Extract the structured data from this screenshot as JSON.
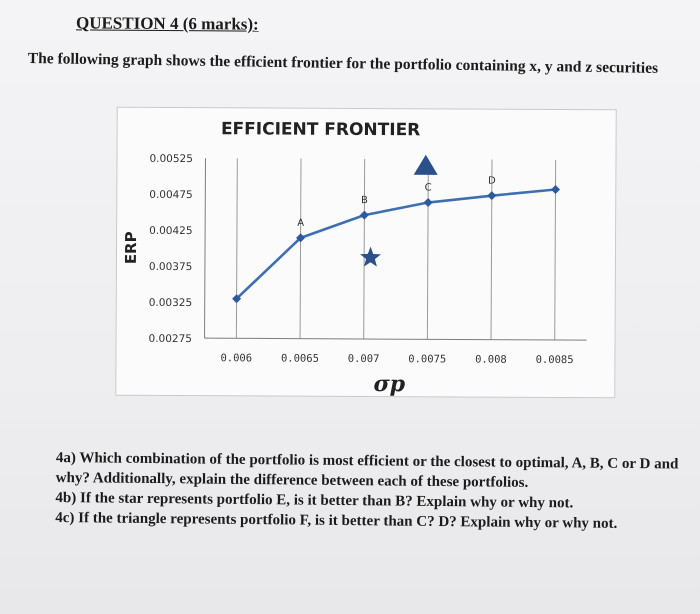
{
  "question_title": "QUESTION 4 (6 marks):",
  "intro": "The following graph shows the efficient frontier for the portfolio containing x, y and z securities",
  "chart_data": {
    "type": "line",
    "title": "EFFICIENT FRONTIER",
    "xlabel": "σp",
    "ylabel": "ERP",
    "xlim": [
      0.00575,
      0.00875
    ],
    "ylim": [
      0.00275,
      0.00525
    ],
    "x_ticks": [
      "0.006",
      "0.0065",
      "0.007",
      "0.0075",
      "0.008",
      "0.0085"
    ],
    "y_ticks": [
      "0.00525",
      "0.00475",
      "0.00425",
      "0.00375",
      "0.00325",
      "0.00275"
    ],
    "grid": true,
    "series": [
      {
        "color": "#3f6fb3",
        "x": [
          0.006,
          0.0065,
          0.007,
          0.0075,
          0.008,
          0.0085
        ],
        "y": [
          0.0033,
          0.00415,
          0.00447,
          0.00465,
          0.00475,
          0.00484
        ],
        "point_labels": [
          "",
          "A",
          "B",
          "C",
          "D",
          ""
        ]
      }
    ],
    "annotations": [
      {
        "shape": "star",
        "x": 0.00705,
        "y": 0.00388,
        "color": "#2a4f8a"
      },
      {
        "shape": "triangle",
        "x": 0.00748,
        "y": 0.00516,
        "color": "#2a4f8a"
      }
    ]
  },
  "questions": [
    "4a) Which combination of the portfolio is most efficient or the closest to optimal, A, B, C or D and why? Additionally, explain the difference between each of these portfolios.",
    "4b) If the star represents portfolio E, is it better than B? Explain why or why not.",
    "4c) If the triangle represents portfolio F, is it better than C? D? Explain why or why not."
  ]
}
